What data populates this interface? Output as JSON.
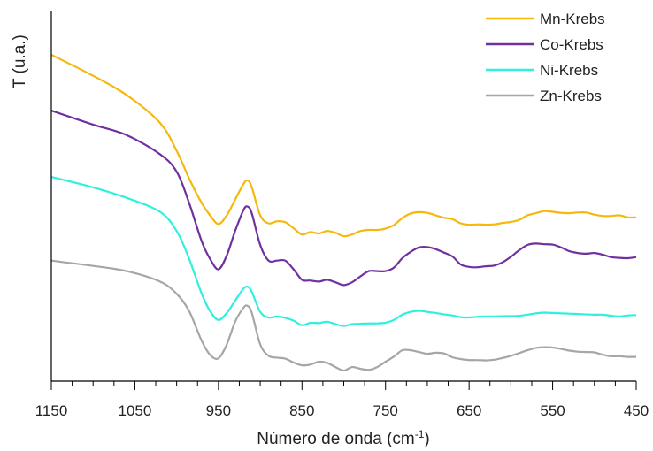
{
  "chart_data": {
    "type": "line",
    "title": "",
    "xlabel": "Número de onda (cm",
    "xlabel_superscript": "-1",
    "xlabel_suffix": ")",
    "ylabel": "T (u.a.)",
    "xlim": [
      1150,
      450
    ],
    "x_reversed": true,
    "ylim": [
      0,
      100
    ],
    "y_ticks_shown": false,
    "x_major_ticks": [
      1150,
      1050,
      950,
      850,
      750,
      650,
      550,
      450
    ],
    "x_tick_labels": [
      "1150",
      "1050",
      "950",
      "850",
      "750",
      "650",
      "550",
      "450"
    ],
    "x_minor_step": 25,
    "grid": false,
    "legend_position": "top-right",
    "x": [
      1150,
      1100,
      1060,
      1020,
      1000,
      985,
      970,
      960,
      950,
      940,
      930,
      920,
      915,
      910,
      900,
      890,
      880,
      870,
      860,
      850,
      840,
      830,
      820,
      810,
      800,
      790,
      780,
      770,
      760,
      750,
      740,
      730,
      720,
      710,
      700,
      690,
      680,
      670,
      660,
      650,
      640,
      630,
      620,
      610,
      600,
      590,
      580,
      570,
      560,
      550,
      540,
      530,
      520,
      510,
      500,
      490,
      480,
      470,
      460,
      450
    ],
    "series": [
      {
        "name": "Mn-Krebs",
        "color": "#f5b80c",
        "values": [
          87.5,
          81.5,
          76,
          68,
          60,
          52,
          45,
          41.5,
          39,
          41.5,
          46,
          50.5,
          51.5,
          49.5,
          41.5,
          39.2,
          39.8,
          39.5,
          37.8,
          36,
          36.7,
          36.3,
          37,
          36.5,
          35.5,
          36,
          37,
          37.3,
          37.3,
          37.7,
          38.7,
          40.7,
          42,
          42.4,
          42.2,
          41.5,
          40.8,
          40.4,
          39.2,
          38.8,
          38.9,
          38.8,
          38.9,
          39.3,
          39.6,
          40.2,
          41.5,
          42.1,
          42.7,
          42.5,
          42.2,
          42.1,
          42.3,
          42.3,
          41.7,
          41.3,
          41.3,
          41.5,
          40.9,
          40.9
        ]
      },
      {
        "name": "Co-Krebs",
        "color": "#7030a0",
        "values": [
          71.5,
          67.5,
          64.5,
          59,
          54,
          45,
          34,
          29,
          26,
          30,
          37,
          43,
          44,
          42,
          33,
          28.5,
          28.5,
          28.5,
          26,
          23,
          22.8,
          22.5,
          23,
          22.3,
          21.5,
          22.3,
          24,
          25.5,
          25.5,
          25.5,
          26.5,
          29.2,
          31,
          32.3,
          32.4,
          31.8,
          30.8,
          29.7,
          27.4,
          26.7,
          26.6,
          26.9,
          27.1,
          28,
          29.6,
          31.5,
          33,
          33.4,
          33.2,
          33.1,
          32.3,
          31.2,
          30.7,
          30.5,
          30.7,
          30.2,
          29.5,
          29.3,
          29.2,
          29.5
        ]
      },
      {
        "name": "Ni-Krebs",
        "color": "#2ff0dd",
        "values": [
          52.5,
          49.5,
          46.5,
          42.5,
          37,
          29,
          19,
          14,
          11.5,
          13.5,
          17,
          20.5,
          21,
          19.5,
          13.8,
          12.2,
          12.5,
          12.1,
          11.3,
          10,
          10.7,
          10.6,
          11,
          10.3,
          9.8,
          10.3,
          10.4,
          10.5,
          10.5,
          10.7,
          11.5,
          13,
          13.8,
          14.1,
          13.8,
          13.5,
          13.1,
          12.8,
          12.3,
          12.2,
          12.4,
          12.5,
          12.5,
          12.6,
          12.6,
          12.7,
          13,
          13.4,
          13.6,
          13.5,
          13.4,
          13.3,
          13.2,
          13.1,
          13,
          13,
          12.7,
          12.5,
          12.8,
          12.9
        ]
      },
      {
        "name": "Zn-Krebs",
        "color": "#a6a6a6",
        "values": [
          28.5,
          27,
          25.5,
          22.5,
          19,
          14,
          5.5,
          1.5,
          0.5,
          4.5,
          11,
          15,
          15.5,
          13.5,
          4.5,
          1.2,
          0.7,
          0.4,
          -0.7,
          -1.5,
          -1.3,
          -0.5,
          -0.8,
          -2,
          -3,
          -2,
          -2.5,
          -2.8,
          -2,
          -0.5,
          1,
          2.8,
          2.8,
          2.3,
          1.8,
          2.1,
          1.9,
          0.8,
          0.3,
          0,
          0,
          -0.1,
          0.1,
          0.6,
          1.2,
          2,
          2.8,
          3.5,
          3.7,
          3.6,
          3.2,
          2.7,
          2.4,
          2.3,
          2.2,
          1.5,
          1.1,
          1.1,
          0.9,
          0.9
        ]
      }
    ]
  }
}
